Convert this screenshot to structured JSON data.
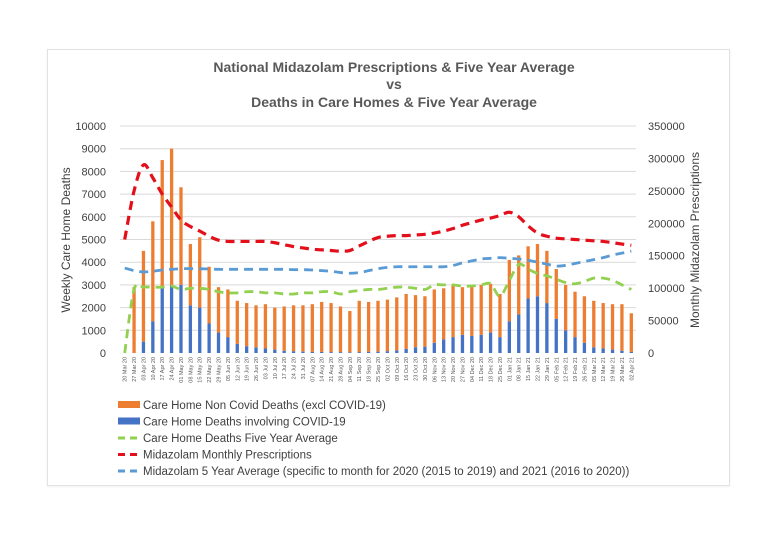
{
  "chart_data": {
    "type": "bar",
    "title_lines": [
      "National Midazolam Prescriptions & Five Year Average",
      "vs",
      "Deaths in Care Homes & Five Year Average"
    ],
    "ylabel": "Weekly Care Home Deaths",
    "y2label": "Monthly Midazolam Prescriptions",
    "ylim": [
      0,
      10000
    ],
    "y2lim": [
      0,
      350000
    ],
    "yticks": [
      0,
      1000,
      2000,
      3000,
      4000,
      5000,
      6000,
      7000,
      8000,
      9000,
      10000
    ],
    "y2ticks": [
      0,
      50000,
      100000,
      150000,
      200000,
      250000,
      300000,
      350000
    ],
    "grid": true,
    "legend_position": "bottom",
    "categories": [
      "20 Mar 20",
      "27 Mar 20",
      "03 Apr 20",
      "10 Apr 20",
      "17 Apr 20",
      "24 Apr 20",
      "01 May 20",
      "08 May 20",
      "15 May 20",
      "22 May 20",
      "29 May 20",
      "05 Jun 20",
      "12 Jun 20",
      "19 Jun 20",
      "26 Jun 20",
      "03 Jul 20",
      "10 Jul 20",
      "17 Jul 20",
      "24 Jul 20",
      "31 Jul 20",
      "07 Aug 20",
      "14 Aug 20",
      "21 Aug 20",
      "28 Aug 20",
      "04 Sep 20",
      "11 Sep 20",
      "18 Sep 20",
      "25 Sep 20",
      "02 Oct 20",
      "09 Oct 20",
      "16 Oct 20",
      "23 Oct 20",
      "30 Oct 20",
      "06 Nov 20",
      "13 Nov 20",
      "20 Nov 20",
      "27 Nov 20",
      "04 Dec 20",
      "11 Dec 20",
      "18 Dec 20",
      "25 Dec 20",
      "01 Jan 21",
      "08 Jan 21",
      "15 Jan 21",
      "22 Jan 21",
      "29 Jan 21",
      "05 Feb 21",
      "12 Feb 21",
      "19 Feb 21",
      "26 Feb 21",
      "05 Mar 21",
      "12 Mar 21",
      "19 Mar 21",
      "26 Mar 21",
      "02 Apr 21"
    ],
    "series": [
      {
        "name": "Care Home Non Covid Deaths (excl COVID-19)",
        "type": "stacked-bar",
        "axis": "left",
        "color": "#ed7d31",
        "values": [
          0,
          2900,
          4000,
          4400,
          5600,
          6000,
          4300,
          2700,
          3100,
          2500,
          2000,
          2100,
          1900,
          1900,
          1850,
          1950,
          1850,
          1950,
          2020,
          2040,
          2100,
          2200,
          2160,
          2010,
          1820,
          2260,
          2200,
          2240,
          2270,
          2330,
          2420,
          2300,
          2220,
          2350,
          2250,
          2300,
          2100,
          2200,
          2200,
          2150,
          1900,
          2700,
          2600,
          2300,
          2300,
          2300,
          2200,
          2000,
          2000,
          2050,
          2050,
          2000,
          2000,
          2050,
          1700
        ]
      },
      {
        "name": "Care Home Deaths involving COVID-19",
        "type": "stacked-bar",
        "axis": "left",
        "color": "#4472c4",
        "values": [
          0,
          0,
          500,
          1400,
          2900,
          3000,
          3000,
          2100,
          2000,
          1300,
          900,
          700,
          400,
          300,
          250,
          200,
          150,
          100,
          80,
          60,
          50,
          50,
          40,
          40,
          30,
          40,
          50,
          60,
          80,
          120,
          180,
          250,
          280,
          450,
          600,
          700,
          800,
          750,
          800,
          900,
          700,
          1400,
          1700,
          2400,
          2500,
          2200,
          1500,
          1000,
          700,
          450,
          250,
          200,
          150,
          100,
          50
        ]
      },
      {
        "name": "Care Home Deaths Five Year Average",
        "type": "line",
        "axis": "left",
        "color": "#92d050",
        "dash": "dashed",
        "values": [
          0,
          2800,
          2900,
          2900,
          2900,
          2950,
          2800,
          2850,
          2850,
          2800,
          2700,
          2650,
          2650,
          2700,
          2700,
          2650,
          2650,
          2600,
          2600,
          2650,
          2650,
          2700,
          2700,
          2600,
          2700,
          2750,
          2800,
          2800,
          2850,
          2900,
          2900,
          2850,
          2800,
          3000,
          3000,
          3000,
          2950,
          2950,
          3000,
          3050,
          2500,
          3200,
          3900,
          3700,
          3500,
          3400,
          3250,
          3100,
          3050,
          3150,
          3300,
          3300,
          3200,
          3000,
          2800
        ]
      },
      {
        "name": "Midazolam Monthly Prescriptions",
        "type": "line",
        "axis": "right",
        "color": "#e3101b",
        "dash": "dashed",
        "values": [
          175000,
          250000,
          290000,
          270000,
          245000,
          225000,
          205000,
          195000,
          188000,
          180000,
          174000,
          172000,
          172000,
          172000,
          172000,
          172000,
          170000,
          167000,
          164000,
          162000,
          160000,
          159000,
          158000,
          157000,
          158000,
          165000,
          172000,
          178000,
          180000,
          181000,
          181000,
          182000,
          183000,
          185000,
          188000,
          192000,
          197000,
          201000,
          205000,
          208000,
          212000,
          217000,
          210000,
          196000,
          185000,
          180000,
          177000,
          176000,
          175000,
          174000,
          173000,
          172000,
          170000,
          168000,
          166000
        ]
      },
      {
        "name": "Midazolam 5 Year Average (specific to month for 2020 (2015 to 2019) and 2021 (2016 to 2020))",
        "type": "line",
        "axis": "right",
        "color": "#5b9bd5",
        "dash": "dashed",
        "values": [
          131000,
          127000,
          125000,
          126000,
          128000,
          129000,
          130000,
          130000,
          130000,
          129500,
          129000,
          129000,
          129000,
          129000,
          129000,
          129000,
          129000,
          129000,
          128500,
          128500,
          128000,
          127000,
          126000,
          124000,
          123000,
          124000,
          127000,
          130000,
          132000,
          133000,
          133000,
          133000,
          133000,
          133000,
          133000,
          135000,
          139000,
          142000,
          145000,
          146000,
          147000,
          146000,
          145000,
          143000,
          140000,
          137000,
          134000,
          135000,
          138000,
          141000,
          144000,
          147000,
          151000,
          154000,
          157000
        ]
      }
    ]
  }
}
